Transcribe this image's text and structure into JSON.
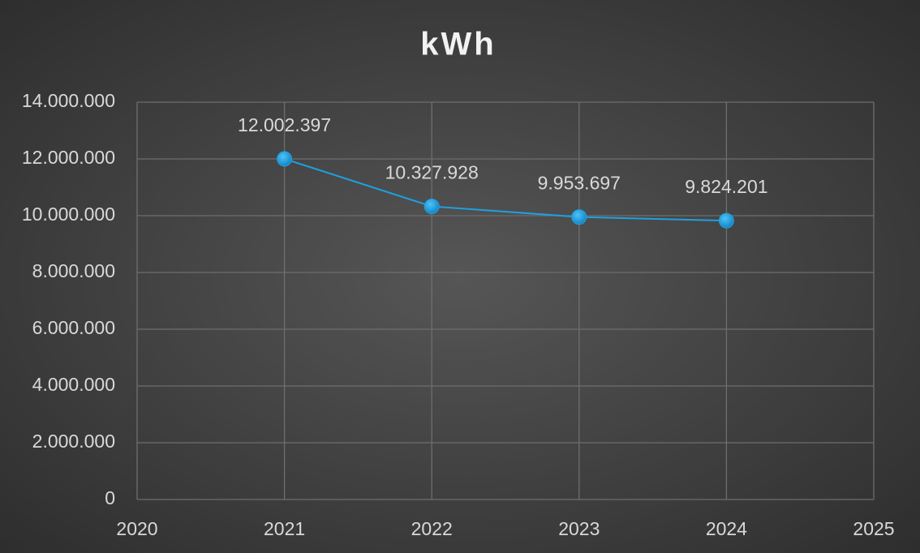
{
  "chart_data": {
    "type": "line",
    "title": "kWh",
    "x": [
      2021,
      2022,
      2023,
      2024
    ],
    "values": [
      12002397,
      10327928,
      9953697,
      9824201
    ],
    "value_labels": [
      "12.002.397",
      "10.327.928",
      "9.953.697",
      "9.824.201"
    ],
    "color": "#1ea0e2",
    "xlim": [
      2020,
      2025
    ],
    "xticks": [
      2020,
      2021,
      2022,
      2023,
      2024,
      2025
    ],
    "ylim": [
      0,
      14000000
    ],
    "yticks": [
      0,
      {
        "value": 2000000,
        "label": "2.000.000"
      },
      {
        "value": 4000000,
        "label": "4.000.000"
      },
      {
        "value": 6000000,
        "label": "6.000.000"
      },
      {
        "value": 8000000,
        "label": "8.000.000"
      },
      {
        "value": 10000000,
        "label": "10.000.000"
      },
      {
        "value": 12000000,
        "label": "12.000.000"
      },
      {
        "value": 14000000,
        "label": "14.000.000"
      }
    ],
    "grid": true
  }
}
